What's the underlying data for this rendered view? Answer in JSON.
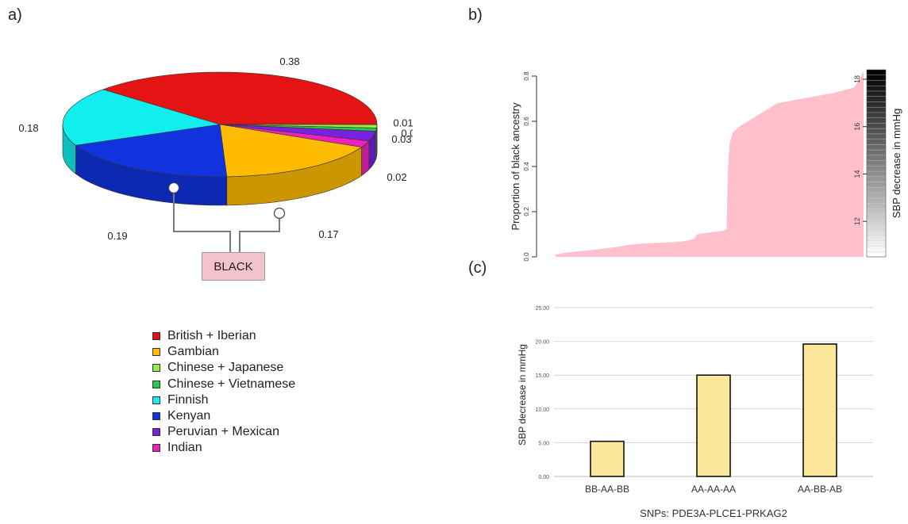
{
  "panels": {
    "a": "a)",
    "b": "b)",
    "c": "(c)"
  },
  "annotation": {
    "black_box_label": "BLACK"
  },
  "chart_data": [
    {
      "type": "pie",
      "panel": "a)",
      "slices": [
        {
          "label": "British + Iberian",
          "value": 0.38,
          "value_label": "0.38",
          "color": "#e41414"
        },
        {
          "label": "Chinese + Japanese",
          "value": 0.01,
          "value_label": "0.01",
          "color": "#99ee44"
        },
        {
          "label": "Chinese + Vietnamese",
          "value": 0.01,
          "value_label": "0.01",
          "color": "#22cc44"
        },
        {
          "label": "Peruvian + Mexican",
          "value": 0.03,
          "value_label": "0.03",
          "color": "#7722dd"
        },
        {
          "label": "Indian",
          "value": 0.02,
          "value_label": "0.02",
          "color": "#ee22bb"
        },
        {
          "label": "Gambian",
          "value": 0.17,
          "value_label": "0.17",
          "color": "#ffbb00"
        },
        {
          "label": "Kenyan",
          "value": 0.19,
          "value_label": "0.19",
          "color": "#1133dd"
        },
        {
          "label": "Finnish",
          "value": 0.18,
          "value_label": "0.18",
          "color": "#11eeee"
        }
      ],
      "legend": [
        {
          "label": "British + Iberian",
          "color": "#e41414"
        },
        {
          "label": "Gambian",
          "color": "#ffbb00"
        },
        {
          "label": "Chinese + Japanese",
          "color": "#99ee44"
        },
        {
          "label": "Chinese + Vietnamese",
          "color": "#22cc44"
        },
        {
          "label": "Finnish",
          "color": "#11eeee"
        },
        {
          "label": "Kenyan",
          "color": "#1133dd"
        },
        {
          "label": "Peruvian + Mexican",
          "color": "#7722dd"
        },
        {
          "label": "Indian",
          "color": "#ee22bb"
        }
      ]
    },
    {
      "type": "area",
      "panel": "b)",
      "ylabel": "Proportion of black ancestry",
      "ylim": [
        0,
        0.8
      ],
      "yticks": [
        "0.0",
        "0.2",
        "0.4",
        "0.6",
        "0.8"
      ],
      "color": "#ffc0cb",
      "series_points": [
        [
          0.0,
          0.01
        ],
        [
          0.03,
          0.018
        ],
        [
          0.08,
          0.025
        ],
        [
          0.15,
          0.035
        ],
        [
          0.2,
          0.045
        ],
        [
          0.25,
          0.055
        ],
        [
          0.3,
          0.06
        ],
        [
          0.38,
          0.065
        ],
        [
          0.42,
          0.07
        ],
        [
          0.45,
          0.08
        ],
        [
          0.46,
          0.1
        ],
        [
          0.5,
          0.108
        ],
        [
          0.54,
          0.115
        ],
        [
          0.555,
          0.12
        ],
        [
          0.56,
          0.4
        ],
        [
          0.565,
          0.5
        ],
        [
          0.575,
          0.55
        ],
        [
          0.6,
          0.58
        ],
        [
          0.66,
          0.63
        ],
        [
          0.72,
          0.68
        ],
        [
          0.8,
          0.7
        ],
        [
          0.9,
          0.725
        ],
        [
          0.97,
          0.75
        ],
        [
          1.0,
          0.82
        ]
      ],
      "colorbar": {
        "label": "SBP decrease in mmHg",
        "range": [
          10.5,
          18.4
        ],
        "ticks": [
          "12",
          "14",
          "16",
          "18"
        ]
      }
    },
    {
      "type": "bar",
      "panel": "(c)",
      "categories": [
        "BB-AA-BB",
        "AA-AA-AA",
        "AA-BB-AB"
      ],
      "values": [
        5.2,
        15.0,
        19.6
      ],
      "xlabel": "SNPs: PDE3A-PLCE1-PRKAG2",
      "ylabel": "SBP decrease in mmHg",
      "ylim": [
        0,
        25
      ],
      "yticks": [
        "0.00",
        "5.00",
        "10.00",
        "15.00",
        "20.00",
        "25.00"
      ],
      "bar_color": "#fde79a",
      "grid": true
    }
  ]
}
